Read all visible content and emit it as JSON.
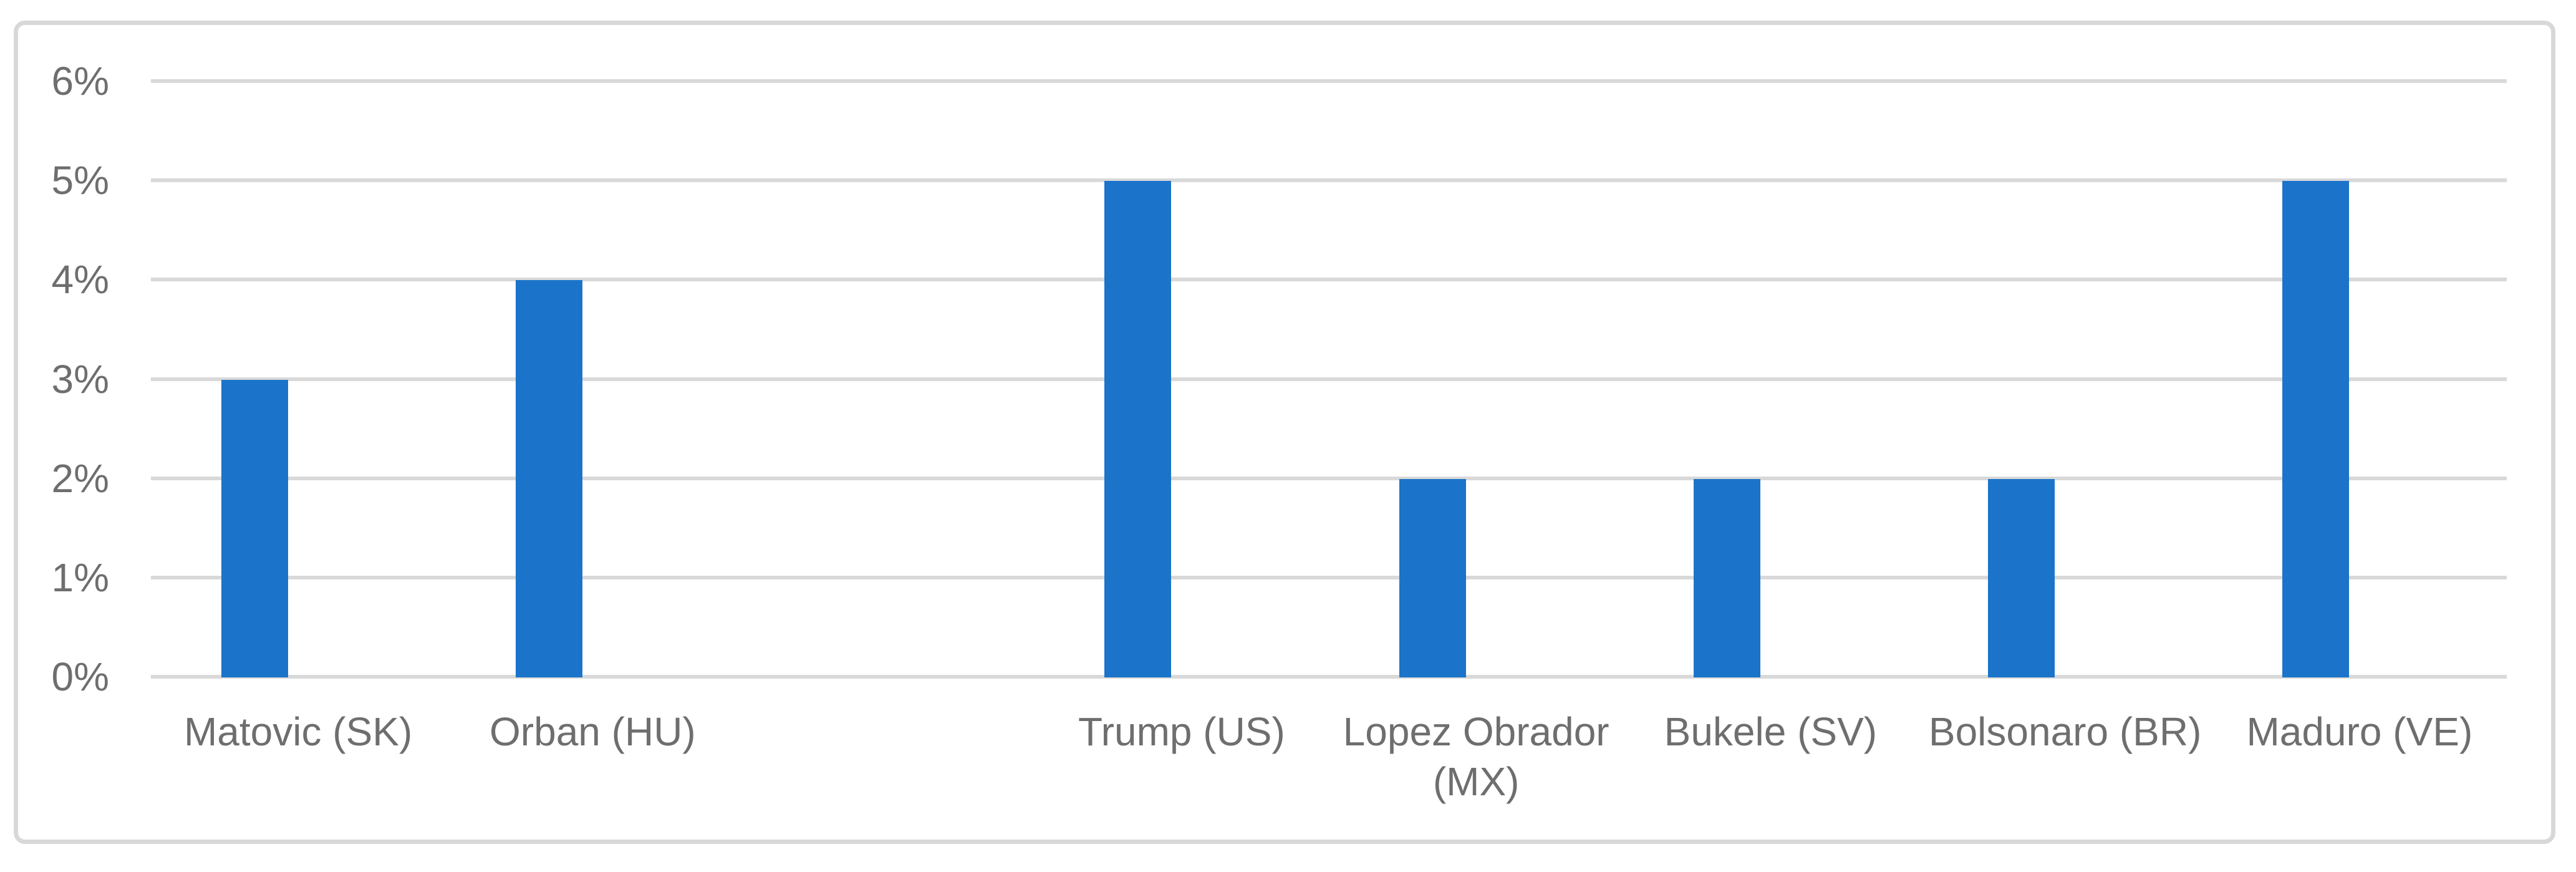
{
  "chart_data": {
    "type": "bar",
    "categories": [
      "Matovic (SK)",
      "Orban (HU)",
      "",
      "Trump (US)",
      "Lopez Obrador (MX)",
      "Bukele (SV)",
      "Bolsonaro (BR)",
      "Maduro (VE)"
    ],
    "values": [
      3,
      4,
      null,
      5,
      2,
      2,
      2,
      5
    ],
    "unit": "%",
    "ylim": [
      0,
      6
    ],
    "y_tick_labels": [
      "6%",
      "5%",
      "4%",
      "3%",
      "2%",
      "1%",
      "0%"
    ],
    "grid": true,
    "legend": "none",
    "colors": {
      "bar": "#1B74C9",
      "gridline": "#D9D9D9",
      "tick_text": "#6E6E6E",
      "frame_border": "#D8D8D8",
      "background": "#FFFFFF"
    }
  }
}
